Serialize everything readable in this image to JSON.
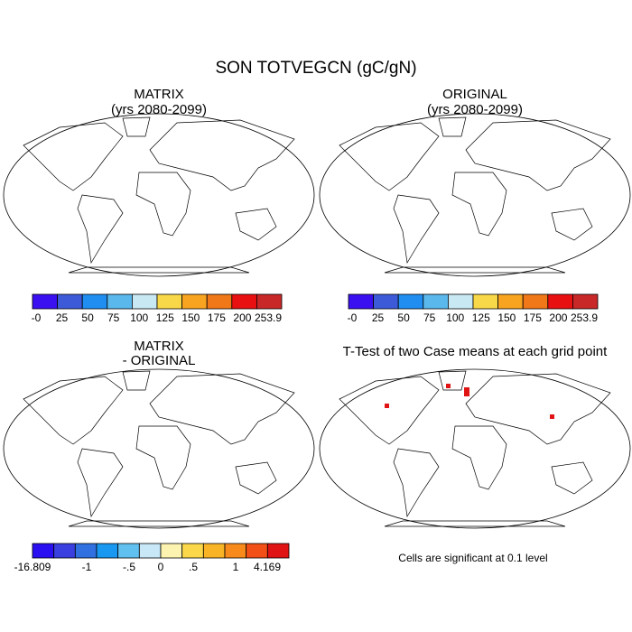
{
  "title": "SON TOTVEGCN (gC/gN)",
  "panels": [
    {
      "title": [
        "MATRIX",
        "(yrs 2080-2099)"
      ]
    },
    {
      "title": [
        "ORIGINAL",
        "(yrs 2080-2099)"
      ]
    },
    {
      "title": [
        "MATRIX",
        "- ORIGINAL"
      ]
    },
    {
      "title": [
        "T-Test of two Case means at each grid point"
      ]
    }
  ],
  "colorbars": [
    {
      "labels": [
        "-0",
        "25",
        "50",
        "75",
        "100",
        "125",
        "150",
        "175",
        "200",
        "253.9"
      ],
      "colors": [
        "#3a10f0",
        "#3d5ad8",
        "#1f8ef0",
        "#5ab8ec",
        "#c8e8f4",
        "#f8d848",
        "#f8a420",
        "#f07818",
        "#e81010",
        "#c82828"
      ]
    },
    {
      "labels": [
        "-0",
        "25",
        "50",
        "75",
        "100",
        "125",
        "150",
        "175",
        "200",
        "253.9"
      ],
      "colors": [
        "#3a10f0",
        "#3d5ad8",
        "#1f8ef0",
        "#5ab8ec",
        "#c8e8f4",
        "#f8d848",
        "#f8a420",
        "#f07818",
        "#e81010",
        "#c82828"
      ]
    },
    {
      "labels": [
        "-16.809",
        "-1",
        "-.5",
        "0",
        ".5",
        "1",
        "4.169"
      ],
      "colors": [
        "#2a10f0",
        "#3a40e0",
        "#3070e0",
        "#1898f0",
        "#60c0f0",
        "#c8e8f8",
        "#fdf3b0",
        "#fad84a",
        "#f8b424",
        "#f88a1c",
        "#f25016",
        "#e01414"
      ]
    }
  ],
  "note": "Cells are significant at 0.1 level"
}
